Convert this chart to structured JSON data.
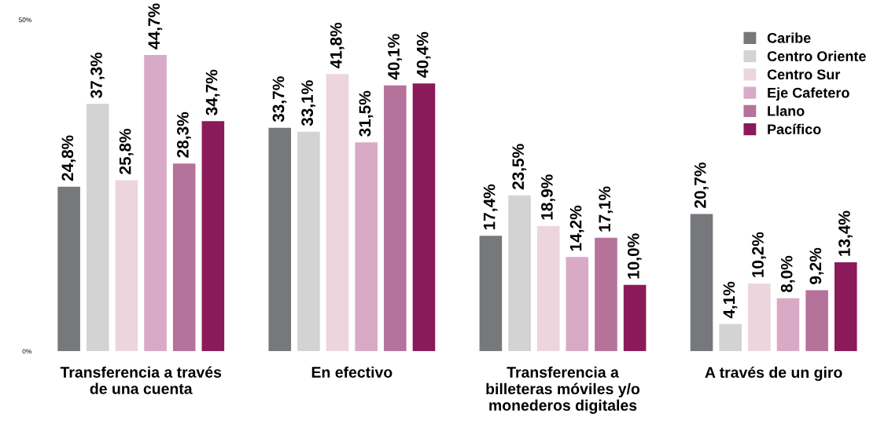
{
  "chart_data": {
    "type": "bar",
    "categories": [
      "Transferencia a través\nde una cuenta",
      "En efectivo",
      "Transferencia a\nbilleteras móviles y/o\nmonederos digitales",
      "A través de un giro"
    ],
    "series": [
      {
        "name": "Caribe",
        "color": "#77787b",
        "values": [
          24.8,
          33.7,
          17.4,
          20.7
        ],
        "value_labels": [
          "24,8%",
          "33,7%",
          "17,4%",
          "20,7%"
        ]
      },
      {
        "name": "Centro Oriente",
        "color": "#d3d3d3",
        "values": [
          37.3,
          33.1,
          23.5,
          4.1
        ],
        "value_labels": [
          "37,3%",
          "33,1%",
          "23,5%",
          "4,1%"
        ]
      },
      {
        "name": "Centro Sur",
        "color": "#ecd5dd",
        "values": [
          25.8,
          41.8,
          18.9,
          10.2
        ],
        "value_labels": [
          "25,8%",
          "41,8%",
          "18,9%",
          "10,2%"
        ]
      },
      {
        "name": "Eje Cafetero",
        "color": "#d9aac6",
        "values": [
          44.7,
          31.5,
          14.2,
          8.0
        ],
        "value_labels": [
          "44,7%",
          "31,5%",
          "14,2%",
          "8,0%"
        ]
      },
      {
        "name": "Llano",
        "color": "#b5729a",
        "values": [
          28.3,
          40.1,
          17.1,
          9.2
        ],
        "value_labels": [
          "28,3%",
          "40,1%",
          "17,1%",
          "9,2%"
        ]
      },
      {
        "name": "Pacífico",
        "color": "#8b1a5a",
        "values": [
          34.7,
          40.4,
          10.0,
          13.4
        ],
        "value_labels": [
          "34,7%",
          "40,4%",
          "10,0%",
          "13,4%"
        ]
      }
    ],
    "ylim": [
      0,
      50
    ],
    "yticks": [
      {
        "value": 0,
        "label": "0%"
      },
      {
        "value": 50,
        "label": "50%"
      }
    ],
    "grid": false,
    "legend": "top right"
  }
}
